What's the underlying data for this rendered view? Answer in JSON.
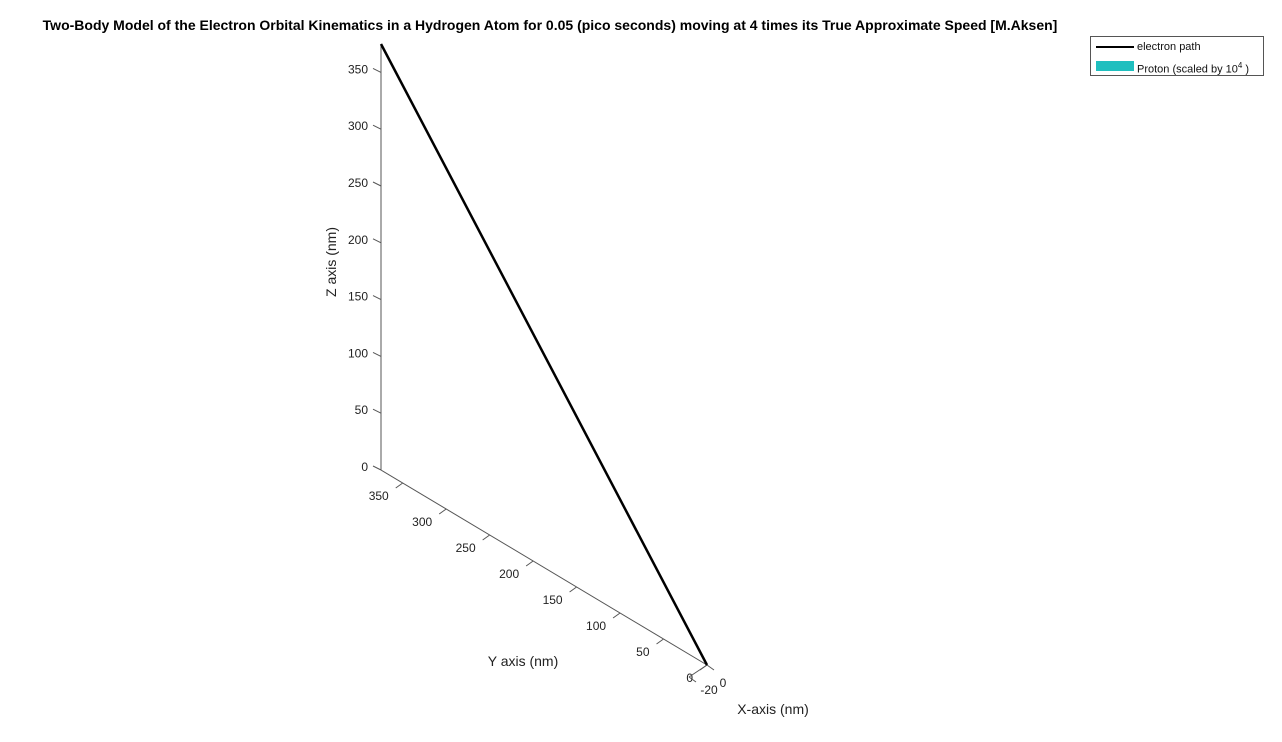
{
  "title": "Two-Body Model of the Electron Orbital Kinematics in a Hydrogen Atom for 0.05 (pico seconds) moving at 4 times its True Approximate Speed [M.Aksen]",
  "colors": {
    "electron": "#000000",
    "proton": "#1fbfbf"
  },
  "chart_data": {
    "type": "line",
    "projection": "3d",
    "title": "Two-Body Model of the Electron Orbital Kinematics in a Hydrogen Atom for 0.05 (pico seconds) moving at 4 times its True Approximate Speed [M.Aksen]",
    "xlabel": "X-axis (nm)",
    "ylabel": "Y axis (nm)",
    "zlabel": "Z axis (nm)",
    "x_ticks": [
      "-20",
      "0"
    ],
    "y_ticks": [
      "0",
      "50",
      "100",
      "150",
      "200",
      "250",
      "300",
      "350"
    ],
    "z_ticks": [
      "0",
      "50",
      "100",
      "150",
      "200",
      "250",
      "300",
      "350"
    ],
    "xlim": [
      -20,
      0
    ],
    "ylim": [
      0,
      375
    ],
    "zlim": [
      0,
      375
    ],
    "grid": false,
    "legend_position": "top-right",
    "series": [
      {
        "name": "electron path",
        "type": "line",
        "color": "#000000",
        "x": [
          0,
          0
        ],
        "y": [
          0,
          375
        ],
        "z": [
          0,
          375
        ]
      }
    ],
    "legend": [
      {
        "label": "electron path",
        "kind": "line",
        "color": "#000000"
      },
      {
        "label": "Proton (scaled by 10",
        "superscript": "4",
        "suffix": " )",
        "kind": "patch",
        "color": "#1fbfbf"
      }
    ]
  }
}
